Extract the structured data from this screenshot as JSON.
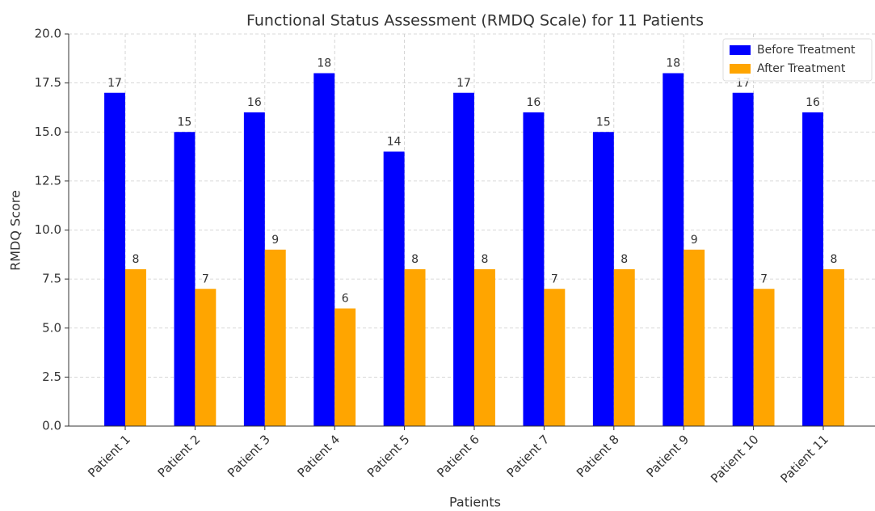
{
  "chart_data": {
    "type": "bar",
    "title": "Functional Status Assessment (RMDQ Scale) for 11 Patients",
    "xlabel": "Patients",
    "ylabel": "RMDQ Score",
    "categories": [
      "Patient 1",
      "Patient 2",
      "Patient 3",
      "Patient 4",
      "Patient 5",
      "Patient 6",
      "Patient 7",
      "Patient 8",
      "Patient 9",
      "Patient 10",
      "Patient 11"
    ],
    "series": [
      {
        "name": "Before Treatment",
        "color": "#0000ff",
        "values": [
          17,
          15,
          16,
          18,
          14,
          17,
          16,
          15,
          18,
          17,
          16
        ]
      },
      {
        "name": "After Treatment",
        "color": "#ffa500",
        "values": [
          8,
          7,
          9,
          6,
          8,
          8,
          7,
          8,
          9,
          7,
          8
        ]
      }
    ],
    "ylim": [
      0,
      20
    ],
    "yticks": [
      {
        "value": 0,
        "label": "0.0"
      },
      2.5,
      {
        "value": 5,
        "label": "5.0"
      },
      7.5,
      {
        "value": 10,
        "label": "10.0"
      },
      12.5,
      {
        "value": 15,
        "label": "15.0"
      },
      17.5,
      {
        "value": 20,
        "label": "20.0"
      }
    ],
    "grid": true,
    "legend": "upper right"
  }
}
